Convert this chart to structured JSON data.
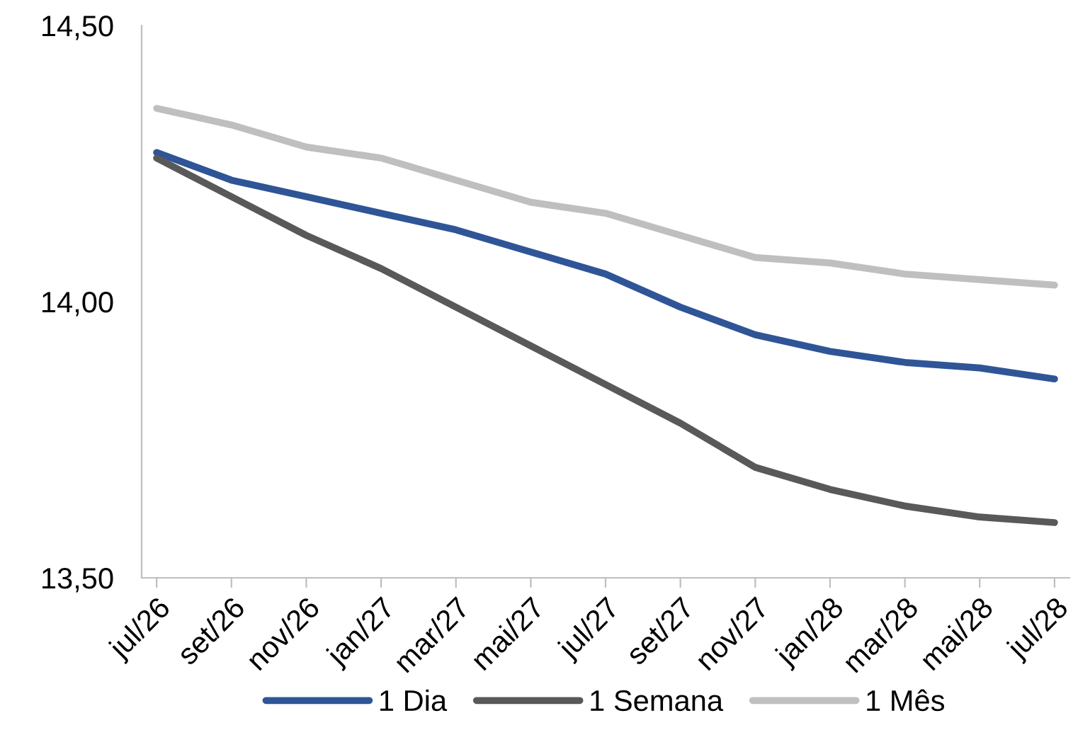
{
  "chart_data": {
    "type": "line",
    "categories": [
      "jul/26",
      "set/26",
      "nov/26",
      "jan/27",
      "mar/27",
      "mai/27",
      "jul/27",
      "set/27",
      "nov/27",
      "jan/28",
      "mar/28",
      "mai/28",
      "jul/28"
    ],
    "series": [
      {
        "name": "1 Dia",
        "color": "#2f5597",
        "values": [
          14.27,
          14.22,
          14.19,
          14.16,
          14.13,
          14.09,
          14.05,
          13.99,
          13.94,
          13.91,
          13.89,
          13.88,
          13.86
        ]
      },
      {
        "name": "1 Semana",
        "color": "#595959",
        "values": [
          14.26,
          14.19,
          14.12,
          14.06,
          13.99,
          13.92,
          13.85,
          13.78,
          13.7,
          13.66,
          13.63,
          13.61,
          13.6
        ]
      },
      {
        "name": "1 Mês",
        "color": "#bfbfbf",
        "values": [
          14.35,
          14.32,
          14.28,
          14.26,
          14.22,
          14.18,
          14.16,
          14.12,
          14.08,
          14.07,
          14.05,
          14.04,
          14.03
        ]
      }
    ],
    "ylim": [
      13.5,
      14.5
    ],
    "yticks": [
      {
        "value": 13.5,
        "label": "13,50"
      },
      {
        "value": 14.0,
        "label": "14,00"
      },
      {
        "value": 14.5,
        "label": "14,50"
      }
    ],
    "grid": false,
    "legend": "bottom",
    "marker": "none",
    "line_style": "solid"
  }
}
